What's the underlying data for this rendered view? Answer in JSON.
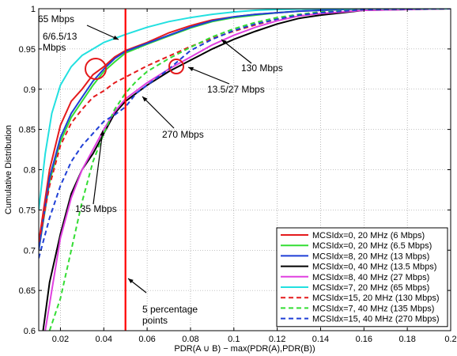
{
  "chart_data": {
    "type": "line",
    "title": "",
    "xlabel": "PDR(A ∪ B) − max(PDR(A),PDR(B))",
    "ylabel": "Cumulative Distribution",
    "xlim": [
      0.01,
      0.2
    ],
    "ylim": [
      0.6,
      1.0
    ],
    "x_ticks": [
      0.02,
      0.04,
      0.06,
      0.08,
      0.1,
      0.12,
      0.14,
      0.16,
      0.18,
      0.2
    ],
    "x_tick_labels": [
      "0.02",
      "0.04",
      "0.06",
      "0.08",
      "0.1",
      "0.12",
      "0.14",
      "0.16",
      "0.18",
      "0.2"
    ],
    "y_ticks": [
      0.6,
      0.65,
      0.7,
      0.75,
      0.8,
      0.85,
      0.9,
      0.95,
      1.0
    ],
    "y_tick_labels": [
      "0.6",
      "0.65",
      "0.7",
      "0.75",
      "0.8",
      "0.85",
      "0.9",
      "0.95",
      "1"
    ],
    "grid": true,
    "legend_position": "bottom-right",
    "series": [
      {
        "name": "MCSIdx=0, 20 MHz (6 Mbps)",
        "color": "#e41a1c",
        "dash": "solid",
        "x": [
          0.01,
          0.015,
          0.02,
          0.025,
          0.03,
          0.035,
          0.04,
          0.045,
          0.05,
          0.06,
          0.07,
          0.08,
          0.09,
          0.1,
          0.11,
          0.12,
          0.13,
          0.14,
          0.15,
          0.16,
          0.2
        ],
        "y": [
          0.71,
          0.8,
          0.855,
          0.885,
          0.9,
          0.918,
          0.928,
          0.94,
          0.948,
          0.958,
          0.97,
          0.979,
          0.986,
          0.99,
          0.993,
          0.995,
          0.997,
          0.998,
          0.999,
          1.0,
          1.0
        ]
      },
      {
        "name": "MCSIdx=0, 20 MHz (6.5 Mbps)",
        "color": "#33dd33",
        "dash": "solid",
        "x": [
          0.01,
          0.015,
          0.02,
          0.025,
          0.03,
          0.035,
          0.04,
          0.045,
          0.05,
          0.06,
          0.07,
          0.08,
          0.09,
          0.1,
          0.11,
          0.12,
          0.13,
          0.14,
          0.15,
          0.16,
          0.2
        ],
        "y": [
          0.7,
          0.785,
          0.835,
          0.865,
          0.885,
          0.905,
          0.922,
          0.934,
          0.945,
          0.956,
          0.966,
          0.976,
          0.984,
          0.989,
          0.992,
          0.995,
          0.997,
          0.998,
          0.999,
          1.0,
          1.0
        ]
      },
      {
        "name": "MCSIdx=8, 20 MHz (13 Mbps)",
        "color": "#1f3fd6",
        "dash": "solid",
        "x": [
          0.01,
          0.015,
          0.02,
          0.025,
          0.03,
          0.035,
          0.04,
          0.045,
          0.05,
          0.06,
          0.07,
          0.08,
          0.09,
          0.1,
          0.11,
          0.12,
          0.13,
          0.14,
          0.15,
          0.16,
          0.2
        ],
        "y": [
          0.7,
          0.79,
          0.84,
          0.87,
          0.89,
          0.91,
          0.925,
          0.938,
          0.947,
          0.957,
          0.967,
          0.977,
          0.985,
          0.99,
          0.993,
          0.995,
          0.997,
          0.998,
          0.999,
          1.0,
          1.0
        ]
      },
      {
        "name": "MCSIdx=0, 40 MHz (13.5 Mbps)",
        "color": "#000000",
        "dash": "solid",
        "x": [
          0.012,
          0.015,
          0.02,
          0.025,
          0.03,
          0.035,
          0.04,
          0.045,
          0.05,
          0.06,
          0.07,
          0.08,
          0.09,
          0.1,
          0.11,
          0.12,
          0.13,
          0.14,
          0.15,
          0.16,
          0.18,
          0.2
        ],
        "y": [
          0.6,
          0.66,
          0.72,
          0.77,
          0.8,
          0.82,
          0.845,
          0.87,
          0.885,
          0.905,
          0.922,
          0.936,
          0.95,
          0.962,
          0.972,
          0.981,
          0.988,
          0.992,
          0.995,
          0.998,
          0.999,
          1.0
        ]
      },
      {
        "name": "MCSIdx=8, 40 MHz (27 Mbps)",
        "color": "#e040e0",
        "dash": "solid",
        "x": [
          0.013,
          0.016,
          0.02,
          0.025,
          0.03,
          0.035,
          0.04,
          0.045,
          0.05,
          0.06,
          0.07,
          0.08,
          0.09,
          0.1,
          0.11,
          0.12,
          0.13,
          0.14,
          0.15,
          0.16,
          0.18,
          0.2
        ],
        "y": [
          0.6,
          0.65,
          0.715,
          0.765,
          0.8,
          0.825,
          0.85,
          0.872,
          0.888,
          0.908,
          0.925,
          0.94,
          0.955,
          0.967,
          0.977,
          0.985,
          0.991,
          0.994,
          0.996,
          0.998,
          0.999,
          1.0
        ]
      },
      {
        "name": "MCSIdx=7, 20 MHz (65 Mbps)",
        "color": "#22e0e0",
        "dash": "solid",
        "x": [
          0.01,
          0.013,
          0.016,
          0.02,
          0.025,
          0.03,
          0.035,
          0.04,
          0.05,
          0.06,
          0.07,
          0.08,
          0.09,
          0.1,
          0.11,
          0.12,
          0.13,
          0.14,
          0.2
        ],
        "y": [
          0.75,
          0.82,
          0.87,
          0.905,
          0.928,
          0.942,
          0.95,
          0.958,
          0.968,
          0.977,
          0.984,
          0.989,
          0.993,
          0.996,
          0.998,
          0.999,
          0.9995,
          1.0,
          1.0
        ]
      },
      {
        "name": "MCSIdx=15, 20 MHz (130 Mbps)",
        "color": "#e41a1c",
        "dash": "dashed",
        "x": [
          0.01,
          0.015,
          0.02,
          0.025,
          0.03,
          0.035,
          0.04,
          0.045,
          0.05,
          0.055,
          0.06,
          0.07,
          0.08,
          0.09,
          0.1,
          0.11,
          0.12,
          0.13,
          0.14,
          0.16,
          0.2
        ],
        "y": [
          0.71,
          0.78,
          0.83,
          0.858,
          0.875,
          0.89,
          0.898,
          0.908,
          0.915,
          0.922,
          0.929,
          0.941,
          0.953,
          0.963,
          0.972,
          0.98,
          0.987,
          0.992,
          0.995,
          0.999,
          1.0
        ]
      },
      {
        "name": "MCSIdx=7, 40 MHz (135 Mbps)",
        "color": "#33dd33",
        "dash": "dashed",
        "x": [
          0.015,
          0.02,
          0.025,
          0.03,
          0.035,
          0.04,
          0.045,
          0.05,
          0.055,
          0.06,
          0.07,
          0.08,
          0.09,
          0.1,
          0.11,
          0.12,
          0.13,
          0.14,
          0.16,
          0.2
        ],
        "y": [
          0.6,
          0.64,
          0.7,
          0.76,
          0.81,
          0.845,
          0.875,
          0.895,
          0.91,
          0.922,
          0.938,
          0.952,
          0.965,
          0.975,
          0.983,
          0.989,
          0.993,
          0.996,
          0.999,
          1.0
        ]
      },
      {
        "name": "MCSIdx=15, 40 MHz (270 Mbps)",
        "color": "#1f3fd6",
        "dash": "dashed",
        "x": [
          0.01,
          0.015,
          0.02,
          0.025,
          0.03,
          0.035,
          0.04,
          0.045,
          0.05,
          0.055,
          0.06,
          0.07,
          0.08,
          0.09,
          0.1,
          0.11,
          0.12,
          0.13,
          0.14,
          0.16,
          0.2
        ],
        "y": [
          0.69,
          0.74,
          0.78,
          0.81,
          0.83,
          0.845,
          0.86,
          0.868,
          0.878,
          0.895,
          0.905,
          0.925,
          0.948,
          0.962,
          0.973,
          0.981,
          0.987,
          0.992,
          0.995,
          0.999,
          1.0
        ]
      }
    ],
    "reference_line": {
      "x": 0.05,
      "color": "#ff0000"
    },
    "annotations": [
      {
        "lines": [
          "65 Mbps"
        ]
      },
      {
        "lines": [
          "6/6.5/13",
          "Mbps"
        ]
      },
      {
        "lines": [
          "130 Mbps"
        ]
      },
      {
        "lines": [
          "270 Mbps"
        ]
      },
      {
        "lines": [
          "13.5/27 Mbps"
        ]
      },
      {
        "lines": [
          "135 Mbps"
        ]
      },
      {
        "lines": [
          "5 percentage",
          "points"
        ]
      }
    ]
  }
}
